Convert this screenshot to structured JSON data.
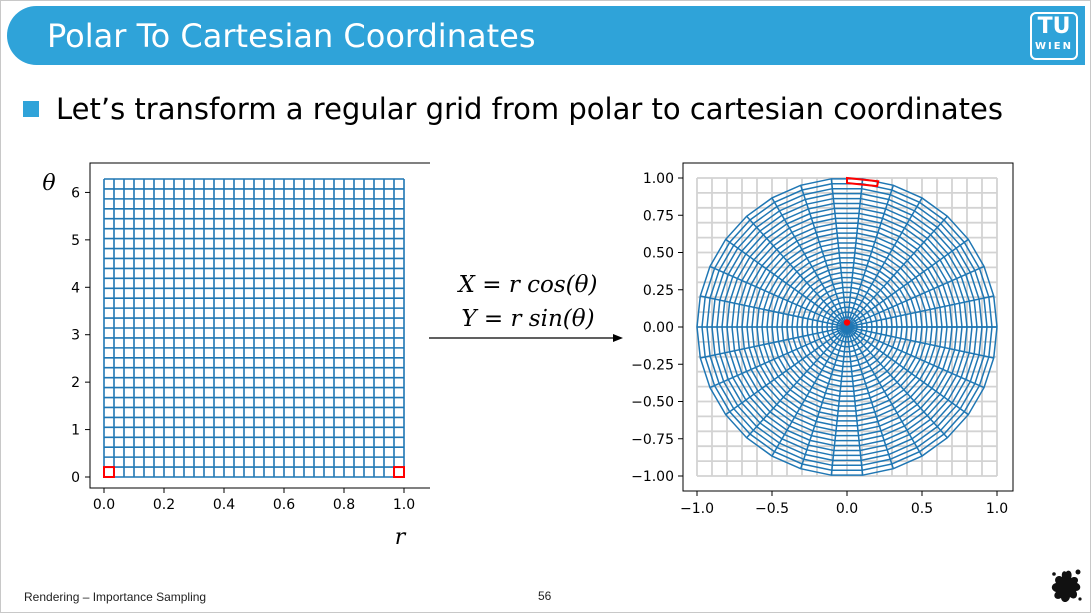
{
  "slide": {
    "title": "Polar To Cartesian Coordinates",
    "bullet": "Let’s transform a regular grid from polar to cartesian coordinates",
    "logo_top": "TU",
    "logo_bottom": "WIEN",
    "footer": "Rendering – Importance Sampling",
    "page_number": "56",
    "icon_names": [
      "tu-wien-logo-icon",
      "splat-icon",
      "bullet-square-icon"
    ],
    "colors": {
      "accent": "#2fa3d9",
      "grid": "#1f77b4",
      "highlight": "#ff0000",
      "bg_grid": "#d3d3d3"
    }
  },
  "transform": {
    "equation_x": "X = r cos(θ)",
    "equation_y": "Y = r sin(θ)"
  },
  "chart_data": [
    {
      "type": "line",
      "description_key": "polar-grid",
      "x_name": "r",
      "y_name": "θ",
      "xlim": [
        0.0,
        1.0
      ],
      "ylim": [
        0.0,
        6.2832
      ],
      "xticks": [
        "0.0",
        "0.2",
        "0.4",
        "0.6",
        "0.8",
        "1.0"
      ],
      "yticks": [
        "0",
        "1",
        "2",
        "3",
        "4",
        "5",
        "6"
      ],
      "grid_lines_r": 31,
      "grid_lines_theta": 31,
      "highlight_cells": [
        {
          "r": [
            0.0,
            0.0333
          ],
          "theta": [
            0.0,
            0.2094
          ]
        },
        {
          "r": [
            0.9667,
            1.0
          ],
          "theta": [
            0.0,
            0.2094
          ]
        }
      ]
    },
    {
      "type": "line",
      "description_key": "cartesian-grid",
      "xlim": [
        -1.0,
        1.0
      ],
      "ylim": [
        -1.0,
        1.0
      ],
      "xticks": [
        "−1.0",
        "−0.5",
        "0.0",
        "0.5",
        "1.0"
      ],
      "yticks": [
        "1.00",
        "0.75",
        "0.50",
        "0.25",
        "0.00",
        "−0.25",
        "−0.50",
        "−0.75",
        "−1.00"
      ],
      "yticks_values": [
        1.0,
        0.75,
        0.5,
        0.25,
        0.0,
        -0.25,
        -0.5,
        -0.75,
        -1.0
      ],
      "background_grid": "on",
      "radial_lines": 30,
      "rings": 30,
      "highlight_cells": [
        {
          "r": [
            0.0,
            0.0333
          ],
          "theta": [
            0.0,
            0.2094
          ]
        },
        {
          "r": [
            0.9667,
            1.0
          ],
          "theta": [
            0.0,
            0.2094
          ]
        }
      ]
    }
  ]
}
